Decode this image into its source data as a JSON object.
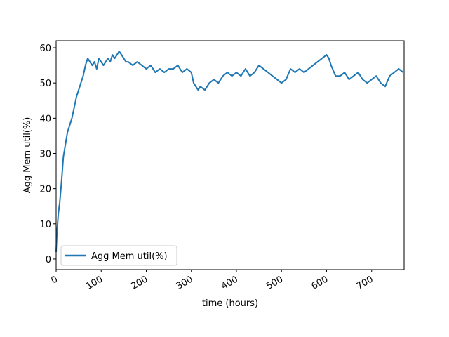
{
  "chart_data": {
    "type": "line",
    "title": "",
    "xlabel": "time (hours)",
    "ylabel": "Agg Mem util(%)",
    "xlim": [
      0,
      772
    ],
    "ylim": [
      -3,
      62
    ],
    "xticks": [
      "0",
      "100",
      "200",
      "300",
      "400",
      "500",
      "600",
      "700"
    ],
    "yticks": [
      "0",
      "10",
      "20",
      "30",
      "40",
      "50",
      "60"
    ],
    "grid": false,
    "legend_position": "lower-left",
    "color": "#1f77b4",
    "series": [
      {
        "name": "Agg Mem util(%)",
        "x": [
          0,
          2,
          5,
          8,
          12,
          16,
          20,
          25,
          30,
          35,
          40,
          45,
          50,
          55,
          60,
          65,
          70,
          75,
          80,
          85,
          90,
          95,
          100,
          105,
          110,
          115,
          120,
          125,
          130,
          135,
          140,
          145,
          150,
          155,
          160,
          170,
          180,
          190,
          200,
          210,
          220,
          230,
          240,
          250,
          260,
          270,
          280,
          290,
          300,
          305,
          310,
          315,
          320,
          330,
          340,
          350,
          360,
          370,
          380,
          390,
          400,
          410,
          420,
          430,
          440,
          450,
          460,
          470,
          480,
          490,
          500,
          510,
          520,
          530,
          540,
          550,
          560,
          570,
          580,
          590,
          600,
          605,
          610,
          620,
          630,
          640,
          650,
          660,
          670,
          680,
          690,
          700,
          710,
          720,
          730,
          740,
          750,
          760,
          770
        ],
        "values": [
          2,
          8,
          13,
          16,
          22,
          29,
          32,
          36,
          38,
          40,
          43,
          46,
          48,
          50,
          52,
          55,
          57,
          56,
          55,
          56,
          54,
          57,
          56,
          55,
          56,
          57,
          56,
          58,
          57,
          58,
          59,
          58,
          57,
          56,
          56,
          55,
          56,
          55,
          54,
          55,
          53,
          54,
          53,
          54,
          54,
          55,
          53,
          54,
          53,
          50,
          49,
          48,
          49,
          48,
          50,
          51,
          50,
          52,
          53,
          52,
          53,
          52,
          54,
          52,
          53,
          55,
          54,
          53,
          52,
          51,
          50,
          51,
          54,
          53,
          54,
          53,
          54,
          55,
          56,
          57,
          58,
          57,
          55,
          52,
          52,
          53,
          51,
          52,
          53,
          51,
          50,
          51,
          52,
          50,
          49,
          52,
          53,
          54,
          53
        ]
      }
    ]
  }
}
